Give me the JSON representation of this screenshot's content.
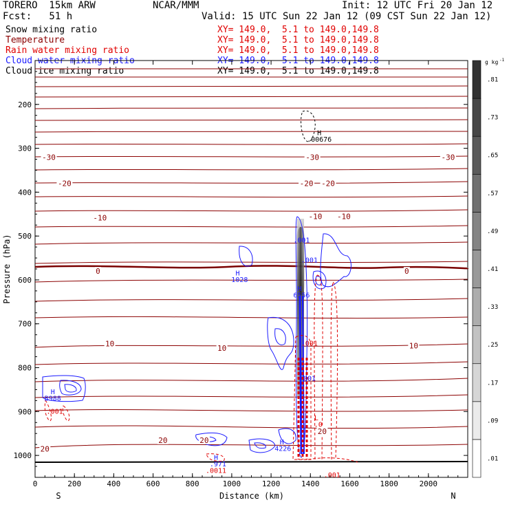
{
  "header": {
    "model": "TORERO  15km ARW",
    "center": "NCAR/MMM",
    "init": "Init: 12 UTC Fri 20 Jan 12",
    "fcst": "Fcst:   51 h",
    "valid": "Valid: 15 UTC Sun 22 Jan 12 (09 CST Sun 22 Jan 12)"
  },
  "fields": [
    {
      "name": "Snow mixing ratio",
      "xy": "XY= 149.0,  5.1 to 149.0,149.8",
      "color": "#000000"
    },
    {
      "name": "Temperature",
      "xy": "XY= 149.0,  5.1 to 149.0,149.8",
      "color": "#8b0000"
    },
    {
      "name": "Rain water mixing ratio",
      "xy": "XY= 149.0,  5.1 to 149.0,149.8",
      "color": "#e00000"
    },
    {
      "name": "Cloud water mixing ratio",
      "xy": "XY= 149.0,  5.1 to 149.0,149.8",
      "color": "#1a1aff"
    },
    {
      "name": "Cloud ice mixing ratio",
      "xy": "XY= 149.0,  5.1 to 149.0,149.8",
      "color": "#000000"
    }
  ],
  "chart_data": {
    "type": "heatmap",
    "xlabel": "Distance (km)",
    "ylabel": "Pressure (hPa)",
    "xlim": [
      0,
      2200
    ],
    "ylim": [
      1050,
      100
    ],
    "x_ticks": [
      0,
      200,
      400,
      600,
      800,
      1000,
      1200,
      1400,
      1600,
      1800,
      2000
    ],
    "y_ticks": [
      200,
      300,
      400,
      500,
      600,
      700,
      800,
      900,
      1000
    ],
    "end_labels": {
      "left": "S",
      "right": "N"
    },
    "colorbar": {
      "unit": "g kg",
      "unit_exp": "-1",
      "labels": [
        ".01",
        ".09",
        ".17",
        ".25",
        ".33",
        ".41",
        ".49",
        ".57",
        ".65",
        ".73",
        ".81"
      ]
    },
    "temperature_isotherms": [
      {
        "value": -30,
        "labels": [
          {
            "x": 70,
            "p": 320,
            "text": "-30"
          },
          {
            "x": 1410,
            "p": 320,
            "text": "-30"
          },
          {
            "x": 2100,
            "p": 320,
            "text": "-30"
          }
        ]
      },
      {
        "value": -20,
        "labels": [
          {
            "x": 150,
            "p": 380,
            "text": "-20"
          },
          {
            "x": 1380,
            "p": 380,
            "text": "-20"
          },
          {
            "x": 1490,
            "p": 380,
            "text": "-20"
          }
        ]
      },
      {
        "value": -10,
        "labels": [
          {
            "x": 330,
            "p": 458,
            "text": "-10"
          },
          {
            "x": 1425,
            "p": 455,
            "text": "-10"
          },
          {
            "x": 1570,
            "p": 455,
            "text": "-10"
          }
        ]
      },
      {
        "value": 0,
        "labels": [
          {
            "x": 320,
            "p": 580,
            "text": "0"
          },
          {
            "x": 1890,
            "p": 580,
            "text": "0"
          }
        ]
      },
      {
        "value": 10,
        "labels": [
          {
            "x": 380,
            "p": 745,
            "text": "10"
          },
          {
            "x": 950,
            "p": 755,
            "text": "10"
          },
          {
            "x": 1925,
            "p": 750,
            "text": "10"
          }
        ]
      },
      {
        "value": 20,
        "labels": [
          {
            "x": 50,
            "p": 985,
            "text": "20"
          },
          {
            "x": 650,
            "p": 965,
            "text": "20"
          },
          {
            "x": 860,
            "p": 965,
            "text": "20"
          },
          {
            "x": 1460,
            "p": 945,
            "text": "20"
          }
        ]
      }
    ],
    "annotations": [
      {
        "x": 1445,
        "p": 270,
        "text": "H",
        "color": "#000000"
      },
      {
        "x": 1445,
        "p": 285,
        "text": ".00676",
        "color": "#000000"
      },
      {
        "x": 1355,
        "p": 515,
        "text": ".001",
        "color": "#1a1aff"
      },
      {
        "x": 1395,
        "p": 560,
        "text": ".001",
        "color": "#1a1aff"
      },
      {
        "x": 1030,
        "p": 590,
        "text": "H",
        "color": "#1a1aff"
      },
      {
        "x": 1040,
        "p": 605,
        "text": "1028",
        "color": "#1a1aff"
      },
      {
        "x": 1345,
        "p": 625,
        "text": "H",
        "color": "#1a1aff"
      },
      {
        "x": 1355,
        "p": 640,
        "text": "6556",
        "color": "#1a1aff"
      },
      {
        "x": 1395,
        "p": 750,
        "text": ".001",
        "color": "#e00000"
      },
      {
        "x": 1385,
        "p": 830,
        "text": ".001",
        "color": "#1a1aff"
      },
      {
        "x": 1430,
        "p": 920,
        "text": "L",
        "color": "#e00000"
      },
      {
        "x": 1440,
        "p": 935,
        "text": ".0",
        "color": "#e00000"
      },
      {
        "x": 1255,
        "p": 975,
        "text": "H",
        "color": "#1a1aff"
      },
      {
        "x": 1260,
        "p": 990,
        "text": "4226",
        "color": "#1a1aff"
      },
      {
        "x": 920,
        "p": 1010,
        "text": "H",
        "color": "#1a1aff"
      },
      {
        "x": 930,
        "p": 1025,
        "text": ".971",
        "color": "#1a1aff"
      },
      {
        "x": 920,
        "p": 1040,
        "text": ".0011",
        "color": "#e00000"
      },
      {
        "x": 90,
        "p": 860,
        "text": "H",
        "color": "#1a1aff"
      },
      {
        "x": 90,
        "p": 875,
        "text": "B988",
        "color": "#1a1aff"
      },
      {
        "x": 100,
        "p": 905,
        "text": ".001",
        "color": "#e00000"
      },
      {
        "x": 1510,
        "p": 1050,
        "text": ".001",
        "color": "#e00000"
      }
    ]
  }
}
